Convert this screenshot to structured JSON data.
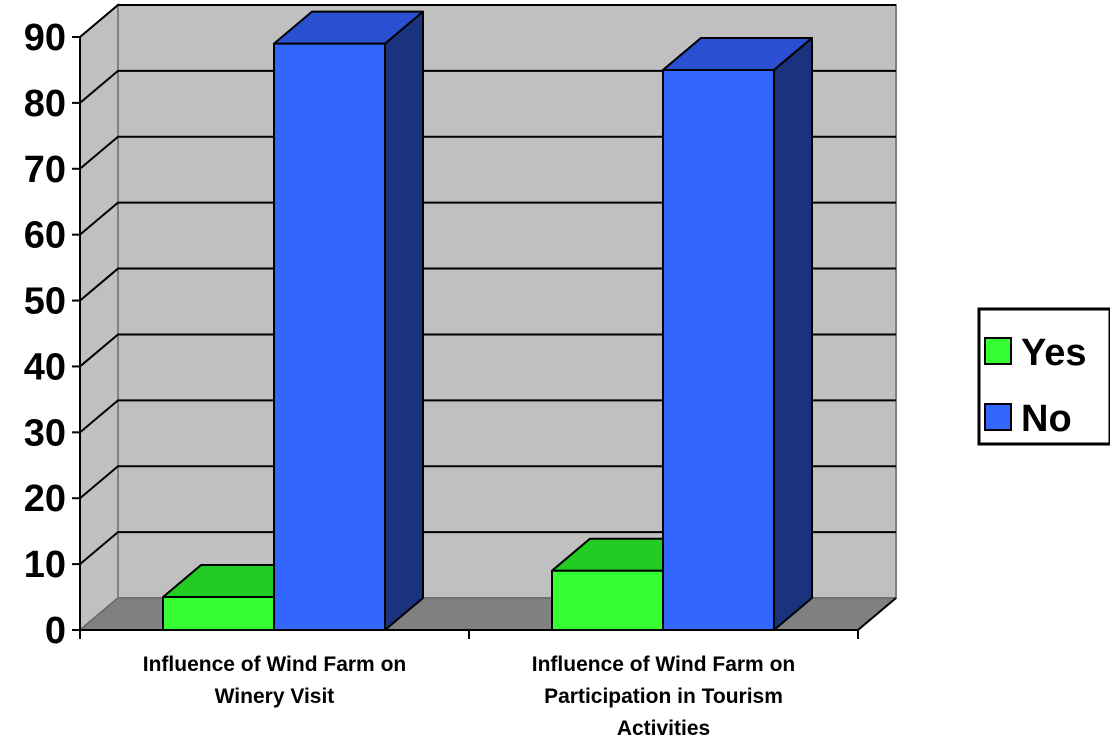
{
  "chart_data": {
    "type": "bar",
    "categories": [
      [
        "Influence of Wind Farm on",
        "Winery Visit"
      ],
      [
        "Influence of Wind Farm on",
        "Participation in Tourism",
        "Activities"
      ]
    ],
    "series": [
      {
        "name": "Yes",
        "values": [
          5,
          9
        ]
      },
      {
        "name": "No",
        "values": [
          89,
          85
        ]
      }
    ],
    "y_ticks": [
      "0",
      "10",
      "20",
      "30",
      "40",
      "50",
      "60",
      "70",
      "80",
      "90"
    ],
    "ylim": [
      0,
      90
    ],
    "grid": true,
    "legend": "right",
    "three_d": true,
    "colors": {
      "Yes": {
        "front": "#33ff33",
        "top": "#22cc22",
        "side": "#119911"
      },
      "No": {
        "front": "#3366ff",
        "top": "#2a4fd0",
        "side": "#1a337f"
      },
      "wall": "#c0c0c0",
      "floor": "#808080"
    }
  }
}
